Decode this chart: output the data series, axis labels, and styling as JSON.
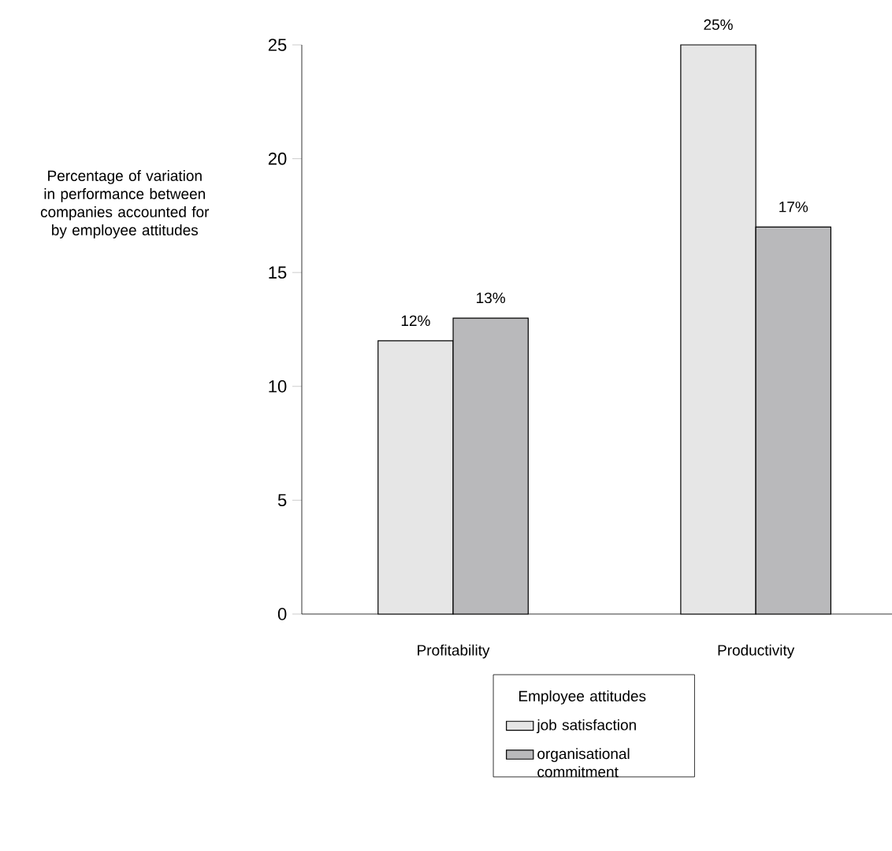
{
  "chart_data": {
    "type": "bar",
    "ylabel": "Percentage of variation in performance between companies accounted for by employee attitudes",
    "categories": [
      "Profitability",
      "Productivity"
    ],
    "series": [
      {
        "name": "job satisfaction",
        "color": "#e6e6e6",
        "values": [
          12,
          25
        ],
        "value_labels": [
          "12%",
          "25%"
        ]
      },
      {
        "name": "organisational commitment",
        "color": "#b9b9bb",
        "values": [
          13,
          17
        ],
        "value_labels": [
          "13%",
          "17%"
        ]
      }
    ],
    "ylim": [
      0,
      25
    ],
    "yticks": [
      0,
      5,
      10,
      15,
      20,
      25
    ],
    "grid": false,
    "legend": "bottom",
    "legend_title": "Employee attitudes"
  }
}
